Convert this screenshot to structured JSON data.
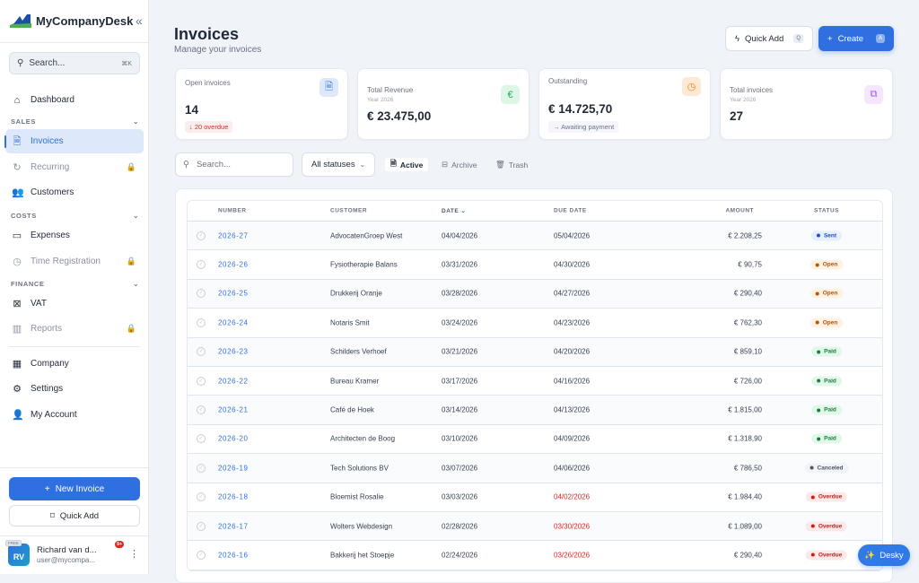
{
  "app": {
    "name": "MyCompanyDesk"
  },
  "sidebar": {
    "search_placeholder": "Search...",
    "search_shortcut": "⌘K",
    "dashboard": "Dashboard",
    "sections": {
      "sales": "SALES",
      "costs": "COSTS",
      "finance": "FINANCE"
    },
    "items": {
      "invoices": "Invoices",
      "recurring": "Recurring",
      "customers": "Customers",
      "expenses": "Expenses",
      "time": "Time Registration",
      "vat": "VAT",
      "reports": "Reports",
      "company": "Company",
      "settings": "Settings",
      "account": "My Account"
    },
    "new_invoice": "New Invoice",
    "quick_add": "Quick Add",
    "user": {
      "initials": "RV",
      "plan": "FREE",
      "name": "Richard van d...",
      "email": "user@mycompa...",
      "notifications": "9+"
    }
  },
  "header": {
    "title": "Invoices",
    "subtitle": "Manage your invoices",
    "quick_add": "Quick Add",
    "quick_add_key": "Q",
    "create": "Create",
    "create_key": "A"
  },
  "stats": {
    "open": {
      "label": "Open invoices",
      "value": "14",
      "note": "↓ 20 overdue"
    },
    "revenue": {
      "label": "Total Revenue",
      "sub": "Year 2026",
      "value": "€ 23.475,00"
    },
    "outstanding": {
      "label": "Outstanding",
      "value": "€ 14.725,70",
      "note": "→ Awaiting payment"
    },
    "total": {
      "label": "Total invoices",
      "sub": "Year 2026",
      "value": "27"
    }
  },
  "filters": {
    "search_placeholder": "Search...",
    "status": "All statuses",
    "tabs": {
      "active": "Active",
      "archive": "Archive",
      "trash": "Trash"
    }
  },
  "table": {
    "columns": {
      "number": "NUMBER",
      "customer": "CUSTOMER",
      "date": "DATE",
      "due": "DUE DATE",
      "amount": "AMOUNT",
      "status": "STATUS"
    },
    "rows": [
      {
        "number": "2026-27",
        "customer": "AdvocatenGroep West",
        "date": "04/04/2026",
        "due": "05/04/2026",
        "amount": "€ 2.208,25",
        "status": "Sent"
      },
      {
        "number": "2026-26",
        "customer": "Fysiotherapie Balans",
        "date": "03/31/2026",
        "due": "04/30/2026",
        "amount": "€ 90,75",
        "status": "Open"
      },
      {
        "number": "2026-25",
        "customer": "Drukkerij Oranje",
        "date": "03/28/2026",
        "due": "04/27/2026",
        "amount": "€ 290,40",
        "status": "Open"
      },
      {
        "number": "2026-24",
        "customer": "Notaris Smit",
        "date": "03/24/2026",
        "due": "04/23/2026",
        "amount": "€ 762,30",
        "status": "Open"
      },
      {
        "number": "2026-23",
        "customer": "Schilders Verhoef",
        "date": "03/21/2026",
        "due": "04/20/2026",
        "amount": "€ 859,10",
        "status": "Paid"
      },
      {
        "number": "2026-22",
        "customer": "Bureau Kramer",
        "date": "03/17/2026",
        "due": "04/16/2026",
        "amount": "€ 726,00",
        "status": "Paid"
      },
      {
        "number": "2026-21",
        "customer": "Café de Hoek",
        "date": "03/14/2026",
        "due": "04/13/2026",
        "amount": "€ 1.815,00",
        "status": "Paid"
      },
      {
        "number": "2026-20",
        "customer": "Architecten de Boog",
        "date": "03/10/2026",
        "due": "04/09/2026",
        "amount": "€ 1.318,90",
        "status": "Paid"
      },
      {
        "number": "2026-19",
        "customer": "Tech Solutions BV",
        "date": "03/07/2026",
        "due": "04/06/2026",
        "amount": "€ 786,50",
        "status": "Canceled"
      },
      {
        "number": "2026-18",
        "customer": "Bloemist Rosalie",
        "date": "03/03/2026",
        "due": "04/02/2026",
        "amount": "€ 1.984,40",
        "status": "Overdue"
      },
      {
        "number": "2026-17",
        "customer": "Wolters Webdesign",
        "date": "02/28/2026",
        "due": "03/30/2026",
        "amount": "€ 1.089,00",
        "status": "Overdue"
      },
      {
        "number": "2026-16",
        "customer": "Bakkerij het Stoepje",
        "date": "02/24/2026",
        "due": "03/26/2026",
        "amount": "€ 290,40",
        "status": "Overdue"
      }
    ]
  },
  "status_colors": {
    "Sent": {
      "bg": "#e6effd",
      "fg": "#1d4ed8"
    },
    "Open": {
      "bg": "#fef3e2",
      "fg": "#b45309"
    },
    "Paid": {
      "bg": "#e3f6ea",
      "fg": "#15803d"
    },
    "Canceled": {
      "bg": "#f1f3f6",
      "fg": "#4b5563"
    },
    "Overdue": {
      "bg": "#fde8e8",
      "fg": "#c81e1e"
    }
  },
  "desky": "Desky"
}
